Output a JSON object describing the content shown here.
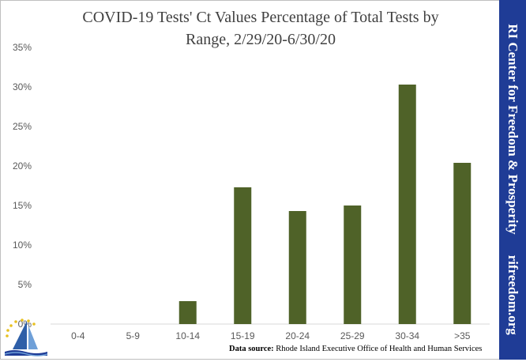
{
  "chart_data": {
    "type": "bar",
    "title_lines": [
      "COVID-19 Tests' Ct Values Percentage of Total Tests by",
      "Range, 2/29/20-6/30/20"
    ],
    "categories": [
      "0-4",
      "5-9",
      "10-14",
      "15-19",
      "20-24",
      "25-29",
      "30-34",
      ">35"
    ],
    "values": [
      0,
      0,
      2.9,
      17.3,
      14.3,
      15.0,
      30.3,
      20.4
    ],
    "ylim": [
      0,
      35
    ],
    "yticks": [
      "0%",
      "5%",
      "10%",
      "15%",
      "20%",
      "25%",
      "30%",
      "35%"
    ],
    "ytick_values": [
      0,
      5,
      10,
      15,
      20,
      25,
      30,
      35
    ],
    "y_unit": "percent",
    "grid": false,
    "legend": "none",
    "bar_color": "#4f6228"
  },
  "sidebar": {
    "brand": "RI Center for Freedom & Prosperity",
    "url": "rifreedom.org",
    "background": "#1f3c96"
  },
  "source": {
    "label": "Data source:",
    "text": "Rhode Island Executive Office of Health and Human Services"
  },
  "logo": {
    "icon": "sailboat-stars-logo"
  }
}
